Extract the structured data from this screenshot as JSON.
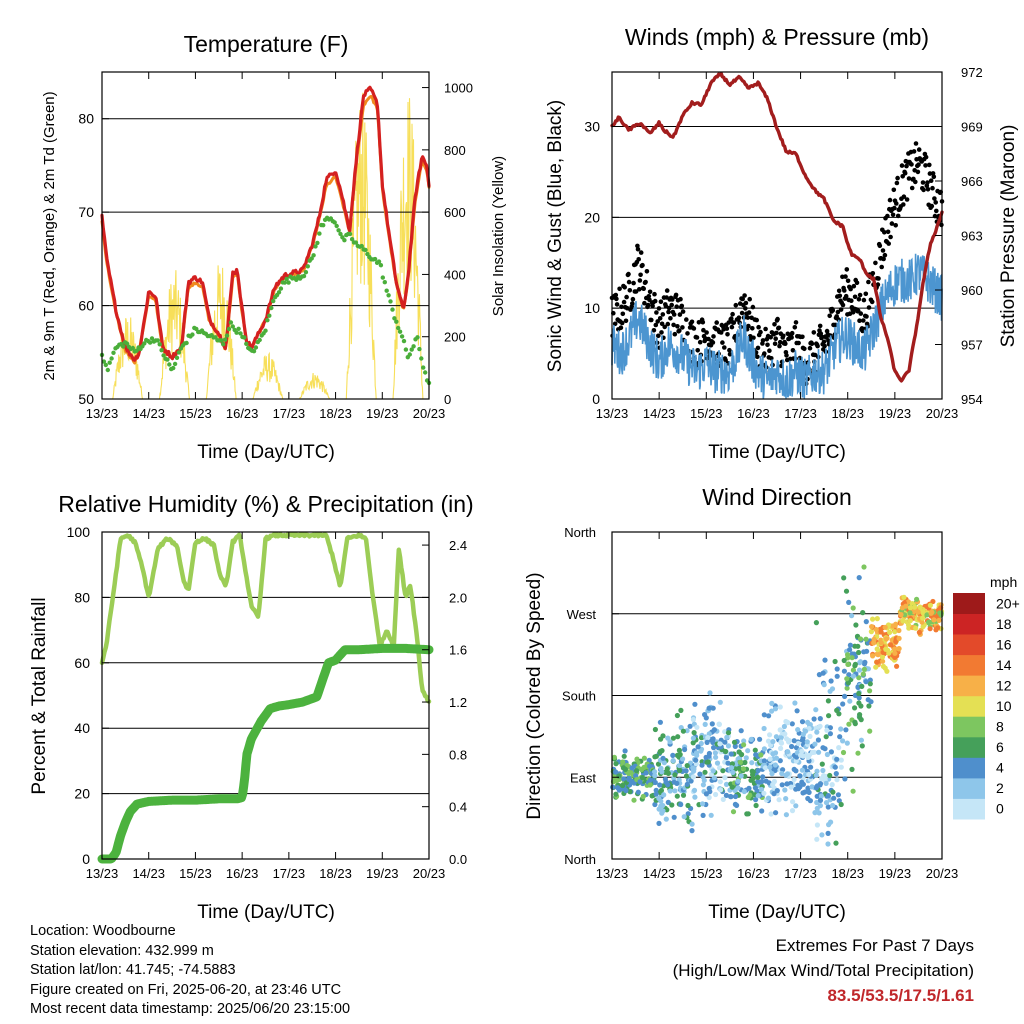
{
  "colors": {
    "t2m": "#d42020",
    "t9m": "#f08a1e",
    "td": "#4aae3a",
    "solar": "#f7df5a",
    "gust": "#000000",
    "wind": "#4c95d0",
    "pressure": "#a21d1d",
    "rh": "#9ccd56",
    "precip": "#4cb23e",
    "grid": "#000000"
  },
  "footer": {
    "location": "Location: Woodbourne",
    "elevation": "Station elevation: 432.999 m",
    "latlon": "Station lat/lon: 41.745; -74.5883",
    "created": "Figure created on Fri, 2025-06-20, at 23:46 UTC",
    "recent": "Most recent data timestamp: 2025/06/20 23:15:00",
    "extremes_title": "Extremes For Past 7 Days",
    "extremes_sub": "(High/Low/Max Wind/Total Precipitation)",
    "extremes_values": "83.5/53.5/17.5/1.61"
  },
  "chart_data": [
    {
      "type": "line",
      "title": "Temperature (F)",
      "xlabel": "Time (Day/UTC)",
      "ylabel": "2m & 9m T (Red, Orange) & 2m Td (Green)",
      "y2label": "Solar Insolation (Yellow)",
      "x_ticks": [
        "13/23",
        "14/23",
        "15/23",
        "16/23",
        "17/23",
        "18/23",
        "19/23",
        "20/23"
      ],
      "xlim": [
        0,
        7
      ],
      "ylim": [
        50,
        85
      ],
      "y_ticks": [
        50,
        60,
        70,
        80
      ],
      "y2lim": [
        0,
        1050
      ],
      "y2_ticks": [
        0,
        200,
        400,
        600,
        800,
        1000
      ],
      "grid": "horizontal",
      "series": [
        {
          "name": "2m T",
          "axis": "left",
          "style": "line",
          "x": [
            0,
            0.1,
            0.3,
            0.5,
            0.7,
            0.8,
            1.0,
            1.15,
            1.3,
            1.5,
            1.7,
            1.85,
            2.0,
            2.15,
            2.3,
            2.5,
            2.65,
            2.8,
            2.9,
            3.0,
            3.1,
            3.2,
            3.35,
            3.5,
            3.7,
            3.9,
            4.1,
            4.3,
            4.5,
            4.65,
            4.8,
            5.0,
            5.15,
            5.3,
            5.45,
            5.6,
            5.75,
            5.9,
            6.0,
            6.15,
            6.3,
            6.45,
            6.55,
            6.7,
            6.85,
            6.95,
            7.0
          ],
          "values": [
            69.5,
            65,
            59.5,
            55.5,
            54.2,
            55,
            61.5,
            61,
            55.5,
            54.5,
            55.5,
            62.5,
            63,
            62.5,
            58.5,
            57,
            55.5,
            63.5,
            63.8,
            59.5,
            56.2,
            55.5,
            57,
            58.5,
            62,
            63.2,
            63.5,
            63.8,
            66.5,
            69.5,
            73.5,
            74.5,
            71.5,
            68,
            76,
            82.5,
            83.2,
            81.5,
            73,
            67.5,
            62.5,
            59.5,
            63,
            71.5,
            76,
            75,
            73
          ]
        },
        {
          "name": "9m T",
          "axis": "left",
          "style": "line",
          "x": [
            0,
            0.1,
            0.3,
            0.5,
            0.7,
            0.8,
            1.0,
            1.15,
            1.3,
            1.5,
            1.7,
            1.85,
            2.0,
            2.15,
            2.3,
            2.5,
            2.65,
            2.8,
            2.9,
            3.0,
            3.1,
            3.2,
            3.35,
            3.5,
            3.7,
            3.9,
            4.1,
            4.3,
            4.5,
            4.65,
            4.8,
            5.0,
            5.15,
            5.3,
            5.45,
            5.6,
            5.75,
            5.9,
            6.0,
            6.15,
            6.3,
            6.45,
            6.55,
            6.7,
            6.85,
            6.95,
            7.0
          ],
          "values": [
            69,
            64.6,
            59.2,
            55.2,
            54,
            55.2,
            61,
            60.5,
            55.3,
            54.4,
            55.6,
            62,
            62.5,
            62,
            58.3,
            56.8,
            55.4,
            63,
            63.3,
            59.2,
            56,
            55.4,
            57,
            58.4,
            61.8,
            63,
            63.3,
            63.6,
            66.3,
            69.2,
            72.8,
            73.8,
            71,
            67.8,
            75.5,
            81.5,
            82.5,
            81,
            72.5,
            67.2,
            62.3,
            59.4,
            62.8,
            71,
            75.5,
            74.6,
            72.6
          ]
        },
        {
          "name": "2m Td",
          "axis": "left",
          "style": "dots",
          "x": [
            0,
            0.1,
            0.3,
            0.5,
            0.7,
            0.9,
            1.1,
            1.2,
            1.35,
            1.5,
            1.7,
            1.85,
            2.0,
            2.2,
            2.4,
            2.6,
            2.75,
            2.85,
            3.0,
            3.15,
            3.3,
            3.5,
            3.7,
            3.9,
            4.1,
            4.3,
            4.5,
            4.7,
            4.85,
            5.0,
            5.15,
            5.3,
            5.45,
            5.6,
            5.8,
            5.95,
            6.1,
            6.25,
            6.4,
            6.55,
            6.65,
            6.75,
            6.85,
            7.0
          ],
          "values": [
            55,
            53,
            55.5,
            56,
            55,
            56,
            56.5,
            56,
            54.5,
            53,
            55.5,
            56.5,
            57.5,
            57,
            56.5,
            56,
            58,
            57.5,
            57,
            55,
            55.5,
            57.5,
            61,
            62.5,
            63,
            63.2,
            65,
            68.5,
            69.5,
            69,
            67,
            67.5,
            66.5,
            66,
            65,
            64.5,
            61.5,
            59,
            57,
            54.5,
            55.5,
            56.5,
            54,
            51.5
          ]
        },
        {
          "name": "Solar Insolation",
          "axis": "right",
          "style": "spikes",
          "peaks_x": [
            0.55,
            1.55,
            2.55,
            3.55,
            4.55,
            5.55,
            6.55
          ],
          "peaks": [
            280,
            420,
            460,
            150,
            90,
            1000,
            1020
          ]
        }
      ]
    },
    {
      "type": "line",
      "title": "Winds (mph) & Pressure (mb)",
      "xlabel": "Time (Day/UTC)",
      "ylabel": "Sonic Wind & Gust (Blue, Black)",
      "y2label": "Station Pressure (Maroon)",
      "x_ticks": [
        "13/23",
        "14/23",
        "15/23",
        "16/23",
        "17/23",
        "18/23",
        "19/23",
        "20/23"
      ],
      "xlim": [
        0,
        7
      ],
      "ylim": [
        0,
        36
      ],
      "y_ticks": [
        0,
        10,
        20,
        30
      ],
      "y2lim": [
        954,
        972
      ],
      "y2_ticks": [
        954,
        957,
        960,
        963,
        966,
        969,
        972
      ],
      "grid": "horizontal",
      "series": [
        {
          "name": "Pressure",
          "axis": "right",
          "style": "line",
          "x": [
            0,
            0.15,
            0.35,
            0.6,
            0.8,
            1.0,
            1.1,
            1.3,
            1.5,
            1.7,
            1.9,
            2.1,
            2.3,
            2.5,
            2.7,
            2.9,
            3.1,
            3.3,
            3.5,
            3.7,
            3.9,
            4.1,
            4.3,
            4.5,
            4.7,
            4.9,
            5.0,
            5.1,
            5.25,
            5.4,
            5.55,
            5.7,
            5.85,
            6.0,
            6.15,
            6.3,
            6.45,
            6.6,
            6.75,
            6.9,
            7.0
          ],
          "values": [
            969,
            969.5,
            968.8,
            969.2,
            968.6,
            969.2,
            968.8,
            968.4,
            969.6,
            970.3,
            970.2,
            971.4,
            971.9,
            971.3,
            971.7,
            971.1,
            971.4,
            970.5,
            968.9,
            967.6,
            967.5,
            966.3,
            965.5,
            965.0,
            963.8,
            963.5,
            962.5,
            961.9,
            961.7,
            960.9,
            960.6,
            958.5,
            957.3,
            955.5,
            955.0,
            955.6,
            957.8,
            960.4,
            962.5,
            963.5,
            964.3
          ]
        },
        {
          "name": "Gust",
          "axis": "left",
          "style": "dots",
          "x": [
            0,
            0.2,
            0.4,
            0.55,
            0.8,
            1.0,
            1.2,
            1.45,
            1.6,
            1.8,
            2.0,
            2.2,
            2.5,
            2.8,
            2.9,
            3.1,
            3.3,
            3.5,
            3.7,
            3.9,
            4.1,
            4.3,
            4.5,
            4.6,
            4.75,
            4.95,
            5.15,
            5.35,
            5.5,
            5.7,
            5.9,
            6.05,
            6.2,
            6.35,
            6.5,
            6.7,
            6.85,
            7.0
          ],
          "values": [
            9,
            10,
            12,
            15,
            11,
            8,
            10,
            9,
            7,
            6,
            7,
            6,
            6,
            11,
            9,
            6,
            5,
            7,
            5,
            6,
            4,
            5,
            6,
            7,
            10,
            12,
            11,
            9,
            12,
            16,
            20,
            22,
            24,
            25,
            26,
            24,
            22,
            21
          ]
        },
        {
          "name": "Wind",
          "axis": "left",
          "style": "line",
          "x": [
            0,
            0.2,
            0.4,
            0.55,
            0.8,
            1.0,
            1.2,
            1.45,
            1.6,
            1.8,
            2.0,
            2.2,
            2.5,
            2.8,
            2.9,
            3.1,
            3.3,
            3.5,
            3.7,
            3.9,
            4.1,
            4.3,
            4.5,
            4.6,
            4.75,
            4.95,
            5.15,
            5.35,
            5.5,
            5.7,
            5.9,
            6.05,
            6.2,
            6.35,
            6.5,
            6.7,
            6.85,
            7.0
          ],
          "values": [
            6,
            5,
            7,
            9,
            6,
            4,
            6,
            5,
            4,
            3,
            4,
            3,
            3,
            7,
            5,
            3,
            2,
            3,
            2,
            3,
            2,
            3,
            3,
            4,
            6,
            7,
            6,
            5,
            7,
            10,
            12,
            13,
            13,
            13,
            14,
            13,
            12,
            11
          ]
        }
      ]
    },
    {
      "type": "line",
      "title": "Relative Humidity (%) & Precipitation (in)",
      "xlabel": "Time (Day/UTC)",
      "ylabel": "Percent & Total Rainfall",
      "x_ticks": [
        "13/23",
        "14/23",
        "15/23",
        "16/23",
        "17/23",
        "18/23",
        "19/23",
        "20/23"
      ],
      "xlim": [
        0,
        7
      ],
      "ylim": [
        0,
        100
      ],
      "y_ticks": [
        0,
        20,
        40,
        60,
        80,
        100
      ],
      "y2lim": [
        0,
        2.5
      ],
      "y2_ticks": [
        "0.0",
        "0.4",
        "0.8",
        "1.2",
        "1.6",
        "2.0",
        "2.4"
      ],
      "grid": "horizontal",
      "series": [
        {
          "name": "RH",
          "axis": "left",
          "style": "line",
          "x": [
            0,
            0.1,
            0.25,
            0.4,
            0.55,
            0.7,
            0.85,
            1.0,
            1.2,
            1.4,
            1.6,
            1.75,
            1.85,
            2.0,
            2.2,
            2.4,
            2.5,
            2.65,
            2.8,
            2.95,
            3.05,
            3.2,
            3.35,
            3.5,
            3.7,
            4.0,
            4.3,
            4.6,
            4.8,
            4.95,
            5.1,
            5.25,
            5.5,
            5.65,
            5.8,
            5.95,
            6.1,
            6.25,
            6.35,
            6.5,
            6.6,
            6.75,
            6.85,
            7.0
          ],
          "values": [
            60,
            66,
            82,
            98,
            99,
            97,
            90,
            80,
            95,
            98,
            96,
            85,
            82,
            97,
            98,
            96,
            88,
            83,
            97,
            99,
            90,
            77,
            74,
            98,
            99,
            99,
            99,
            99,
            99,
            92,
            83,
            98,
            99,
            98,
            80,
            65,
            70,
            65,
            95,
            80,
            84,
            67,
            52,
            48
          ]
        },
        {
          "name": "Total Rainfall",
          "axis": "right",
          "style": "line",
          "x": [
            0,
            0.2,
            0.3,
            0.4,
            0.5,
            0.6,
            0.75,
            1.0,
            1.5,
            2.0,
            2.5,
            2.9,
            3.0,
            3.05,
            3.1,
            3.2,
            3.4,
            3.6,
            3.8,
            4.0,
            4.3,
            4.6,
            4.75,
            4.85,
            5.0,
            5.2,
            5.5,
            6.0,
            6.5,
            7.0
          ],
          "values": [
            0.0,
            0.0,
            0.05,
            0.18,
            0.28,
            0.36,
            0.42,
            0.44,
            0.45,
            0.45,
            0.46,
            0.46,
            0.47,
            0.6,
            0.8,
            0.92,
            1.05,
            1.15,
            1.17,
            1.18,
            1.2,
            1.24,
            1.4,
            1.5,
            1.52,
            1.6,
            1.6,
            1.61,
            1.61,
            1.6
          ]
        }
      ]
    },
    {
      "type": "scatter",
      "title": "Wind Direction",
      "xlabel": "Time (Day/UTC)",
      "ylabel": "Direction (Colored By Speed)",
      "x_ticks": [
        "13/23",
        "14/23",
        "15/23",
        "16/23",
        "17/23",
        "18/23",
        "19/23",
        "20/23"
      ],
      "xlim": [
        0,
        7
      ],
      "ylim": [
        0,
        360
      ],
      "y_tick_labels": [
        "North",
        "East",
        "South",
        "West",
        "North"
      ],
      "y_tick_values": [
        0,
        90,
        180,
        270,
        360
      ],
      "grid": "horizontal",
      "colorbar": {
        "unit": "mph",
        "labels": [
          "0",
          "2",
          "4",
          "6",
          "8",
          "10",
          "12",
          "14",
          "16",
          "18",
          "20+"
        ],
        "colors": [
          "#c5e6f7",
          "#8ec6ea",
          "#4f8fcc",
          "#45a05a",
          "#7dc660",
          "#e4e054",
          "#f7b048",
          "#f27a32",
          "#e34a2a",
          "#cc2424",
          "#9e1a1a"
        ]
      },
      "clusters": [
        {
          "x0": 0,
          "x1": 0.9,
          "dir": 90,
          "spread": 18,
          "speed": 6
        },
        {
          "x0": 0.9,
          "x1": 1.7,
          "dir": 95,
          "spread": 40,
          "speed": 4
        },
        {
          "x0": 1.7,
          "x1": 2.5,
          "dir": 110,
          "spread": 45,
          "speed": 3
        },
        {
          "x0": 2.5,
          "x1": 3.2,
          "dir": 95,
          "spread": 30,
          "speed": 5
        },
        {
          "x0": 3.2,
          "x1": 4.3,
          "dir": 110,
          "spread": 40,
          "speed": 2
        },
        {
          "x0": 4.3,
          "x1": 4.9,
          "dir": 120,
          "spread": 80,
          "speed": 3
        },
        {
          "x0": 4.9,
          "x1": 5.5,
          "dir": 200,
          "spread": 70,
          "speed": 5
        },
        {
          "x0": 5.5,
          "x1": 6.1,
          "dir": 235,
          "spread": 20,
          "speed": 12
        },
        {
          "x0": 6.1,
          "x1": 7.0,
          "dir": 270,
          "spread": 14,
          "speed": 11
        }
      ]
    }
  ]
}
